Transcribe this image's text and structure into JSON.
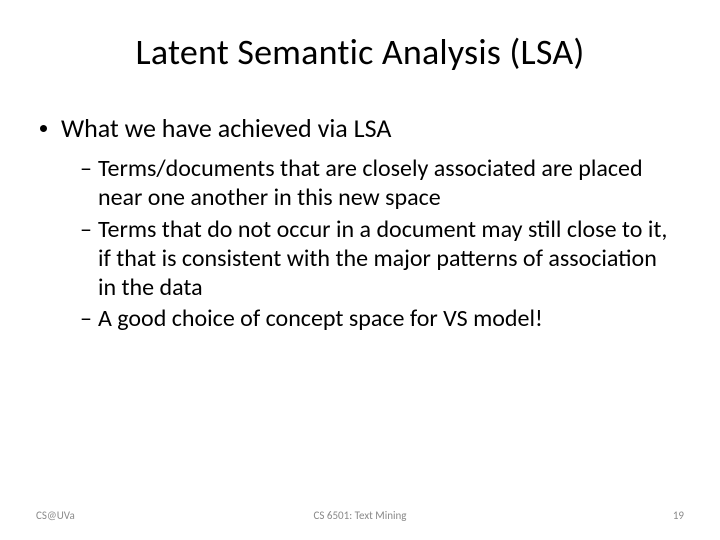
{
  "slide": {
    "title": "Latent Semantic Analysis (LSA)",
    "level1": {
      "text": "What we have achieved via LSA"
    },
    "level2": [
      {
        "text": "Terms/documents that are closely associated are placed near one another in this new space"
      },
      {
        "text": "Terms that do not occur in a document may still close to it, if that is consistent with the major patterns of association in the data"
      },
      {
        "text": "A good choice of concept space for VS model!"
      }
    ]
  },
  "footer": {
    "left": "CS@UVa",
    "center": "CS 6501: Text Mining",
    "pageNumber": "19"
  },
  "colors": {
    "background": "#ffffff",
    "text": "#000000",
    "footer": "#8a8a8a"
  }
}
